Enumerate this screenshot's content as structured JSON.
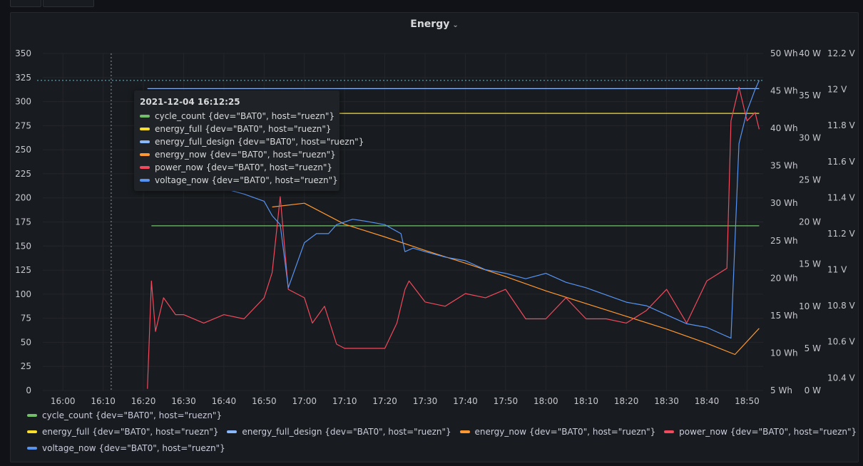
{
  "panel": {
    "title": "Energy",
    "chevron": "chevron-down-icon"
  },
  "chart_data": {
    "type": "line",
    "x_ticks": [
      "16:00",
      "16:10",
      "16:20",
      "16:30",
      "16:40",
      "16:50",
      "17:00",
      "17:10",
      "17:20",
      "17:30",
      "17:40",
      "17:50",
      "18:00",
      "18:10",
      "18:20",
      "18:30",
      "18:40",
      "18:50"
    ],
    "x_range": [
      "15:55",
      "18:54"
    ],
    "axes": {
      "count": {
        "ticks": [
          "350",
          "325",
          "300",
          "275",
          "250",
          "225",
          "200",
          "175",
          "150",
          "125",
          "100",
          "75",
          "50",
          "25",
          "0"
        ],
        "ylim": [
          0,
          350
        ]
      },
      "energy": {
        "ticks": [
          "50 Wh",
          "45 Wh",
          "40 Wh",
          "35 Wh",
          "30 Wh",
          "25 Wh",
          "20 Wh",
          "15 Wh",
          "10 Wh",
          "5 Wh"
        ],
        "ylim": [
          5,
          50
        ]
      },
      "power": {
        "ticks": [
          "40 W",
          "35 W",
          "30 W",
          "25 W",
          "20 W",
          "15 W",
          "10 W",
          "5 W",
          "0 W"
        ],
        "ylim": [
          0,
          40
        ]
      },
      "voltage": {
        "ticks": [
          "12.2 V",
          "12 V",
          "11.8 V",
          "11.6 V",
          "11.4 V",
          "11.2 V",
          "11 V",
          "10.8 V",
          "10.6 V",
          "10.4 V"
        ],
        "ylim": [
          10.33,
          12.2
        ]
      }
    },
    "series": [
      {
        "name": "cycle_count {dev=\"BAT0\", host=\"ruezn\"}",
        "color": "#73bf69",
        "axis": "count",
        "x": [
          "16:22",
          "18:53"
        ],
        "y": [
          171,
          171
        ]
      },
      {
        "name": "energy_full {dev=\"BAT0\", host=\"ruezn\"}",
        "color": "#fade2a",
        "axis": "energy",
        "x": [
          "16:22",
          "18:53"
        ],
        "y": [
          42.0,
          42.0
        ]
      },
      {
        "name": "energy_full_design {dev=\"BAT0\", host=\"ruezn\"}",
        "color": "#8ab8ff",
        "axis": "energy",
        "x": [
          "16:21",
          "18:53"
        ],
        "y": [
          45.3,
          45.3
        ]
      },
      {
        "name": "energy_now {dev=\"BAT0\", host=\"ruezn\"}",
        "color": "#ff9830",
        "axis": "energy",
        "x": [
          "16:52",
          "17:00",
          "17:10",
          "17:20",
          "17:30",
          "17:40",
          "17:50",
          "18:00",
          "18:10",
          "18:20",
          "18:30",
          "18:40",
          "18:47",
          "18:53"
        ],
        "y": [
          29.5,
          30.0,
          27.2,
          25.5,
          23.7,
          22.0,
          20.2,
          18.3,
          16.6,
          14.9,
          13.2,
          11.3,
          9.8,
          13.3
        ]
      },
      {
        "name": "power_now {dev=\"BAT0\", host=\"ruezn\"}",
        "color": "#f2495c",
        "axis": "power",
        "x": [
          "16:21",
          "16:22",
          "16:23",
          "16:25",
          "16:28",
          "16:30",
          "16:35",
          "16:40",
          "16:45",
          "16:50",
          "16:52",
          "16:54",
          "16:56",
          "16:58",
          "17:00",
          "17:02",
          "17:05",
          "17:08",
          "17:10",
          "17:15",
          "17:20",
          "17:23",
          "17:25",
          "17:26",
          "17:30",
          "17:35",
          "17:40",
          "17:45",
          "17:50",
          "17:55",
          "18:00",
          "18:05",
          "18:10",
          "18:15",
          "18:20",
          "18:25",
          "18:30",
          "18:35",
          "18:40",
          "18:45",
          "18:46",
          "18:48",
          "18:50",
          "18:52",
          "18:53"
        ],
        "y": [
          0.2,
          13.0,
          7.0,
          11.0,
          9.0,
          9.0,
          8.0,
          9.0,
          8.5,
          11.0,
          14.0,
          23.0,
          12.0,
          11.5,
          11.0,
          8.0,
          10.0,
          5.5,
          5.0,
          5.0,
          5.0,
          8.0,
          12.0,
          13.0,
          10.5,
          10.0,
          11.5,
          11.0,
          12.0,
          8.5,
          8.5,
          11.0,
          8.5,
          8.5,
          8.0,
          9.5,
          12.0,
          8.0,
          13.0,
          14.5,
          32.0,
          36.0,
          32.0,
          33.0,
          31.0
        ]
      },
      {
        "name": "voltage_now {dev=\"BAT0\", host=\"ruezn\"}",
        "color": "#5794f2",
        "axis": "voltage",
        "x": [
          "16:21",
          "16:22",
          "16:24",
          "16:27",
          "16:30",
          "16:35",
          "16:40",
          "16:45",
          "16:50",
          "16:52",
          "16:54",
          "16:56",
          "17:00",
          "17:03",
          "17:06",
          "17:08",
          "17:12",
          "17:15",
          "17:20",
          "17:24",
          "17:25",
          "17:27",
          "17:30",
          "17:35",
          "17:40",
          "17:45",
          "17:50",
          "17:55",
          "18:00",
          "18:05",
          "18:10",
          "18:15",
          "18:20",
          "18:25",
          "18:30",
          "18:35",
          "18:40",
          "18:45",
          "18:46",
          "18:48",
          "18:50",
          "18:52",
          "18:53"
        ],
        "y": [
          11.5,
          11.7,
          11.6,
          11.55,
          11.55,
          11.5,
          11.45,
          11.42,
          11.38,
          11.3,
          11.25,
          10.9,
          11.15,
          11.2,
          11.2,
          11.25,
          11.28,
          11.27,
          11.25,
          11.2,
          11.1,
          11.12,
          11.1,
          11.07,
          11.05,
          11.0,
          10.98,
          10.95,
          10.98,
          10.93,
          10.9,
          10.86,
          10.82,
          10.8,
          10.75,
          10.7,
          10.68,
          10.63,
          10.62,
          11.7,
          11.88,
          12.0,
          12.05
        ]
      }
    ],
    "crosshair": {
      "x": "16:12",
      "y": 322
    },
    "legend_placement": "bottom",
    "grid": true
  },
  "tooltip": {
    "time": "2021-12-04 16:12:25",
    "rows": [
      {
        "label": "cycle_count {dev=\"BAT0\", host=\"ruezn\"}",
        "color": "#73bf69"
      },
      {
        "label": "energy_full {dev=\"BAT0\", host=\"ruezn\"}",
        "color": "#fade2a"
      },
      {
        "label": "energy_full_design {dev=\"BAT0\", host=\"ruezn\"}",
        "color": "#8ab8ff"
      },
      {
        "label": "energy_now {dev=\"BAT0\", host=\"ruezn\"}",
        "color": "#ff9830"
      },
      {
        "label": "power_now {dev=\"BAT0\", host=\"ruezn\"}",
        "color": "#f2495c"
      },
      {
        "label": "voltage_now {dev=\"BAT0\", host=\"ruezn\"}",
        "color": "#5794f2"
      }
    ]
  }
}
